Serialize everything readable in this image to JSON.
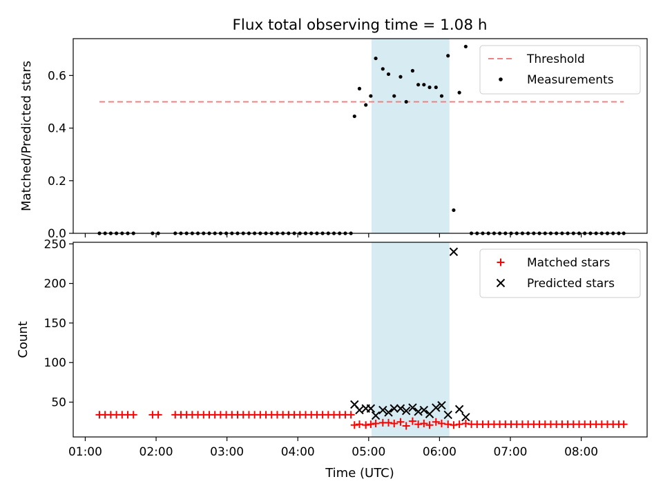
{
  "chart_data": {
    "title": "Flux total observing time = 1.08 h",
    "xlabel": "Time (UTC)",
    "x_ticks": [
      "01:00",
      "02:00",
      "03:00",
      "04:00",
      "05:00",
      "06:00",
      "07:00",
      "08:00"
    ],
    "x_range_hours": [
      0.83,
      8.93
    ],
    "highlight_span_hours": [
      5.04,
      6.14
    ],
    "highlight_color": "#add8e6",
    "panels": [
      {
        "type": "scatter",
        "ylabel": "Matched/Predicted stars",
        "ylim": [
          0,
          0.74
        ],
        "yticks": [
          "0.0",
          "0.2",
          "0.4",
          "0.6"
        ],
        "ytick_values": [
          0,
          0.2,
          0.4,
          0.6
        ],
        "legend": {
          "placement": "top-right",
          "entries": [
            "Threshold",
            "Measurements"
          ]
        },
        "threshold": {
          "name": "Threshold",
          "value": 0.5,
          "x_range_hours": [
            1.2,
            8.6
          ],
          "color": "#f08080"
        },
        "series": [
          {
            "name": "Measurements",
            "color": "#000000",
            "points": [
              [
                1.2,
                0
              ],
              [
                1.28,
                0
              ],
              [
                1.36,
                0
              ],
              [
                1.44,
                0
              ],
              [
                1.52,
                0
              ],
              [
                1.6,
                0
              ],
              [
                1.68,
                0
              ],
              [
                1.95,
                0
              ],
              [
                2.03,
                0
              ],
              [
                2.27,
                0
              ],
              [
                2.35,
                0
              ],
              [
                2.43,
                0
              ],
              [
                2.51,
                0
              ],
              [
                2.59,
                0
              ],
              [
                2.67,
                0
              ],
              [
                2.75,
                0
              ],
              [
                2.83,
                0
              ],
              [
                2.91,
                0
              ],
              [
                2.99,
                0
              ],
              [
                3.07,
                0
              ],
              [
                3.15,
                0
              ],
              [
                3.23,
                0
              ],
              [
                3.31,
                0
              ],
              [
                3.39,
                0
              ],
              [
                3.47,
                0
              ],
              [
                3.55,
                0
              ],
              [
                3.63,
                0
              ],
              [
                3.71,
                0
              ],
              [
                3.79,
                0
              ],
              [
                3.87,
                0
              ],
              [
                3.95,
                0
              ],
              [
                4.03,
                0
              ],
              [
                4.11,
                0
              ],
              [
                4.19,
                0
              ],
              [
                4.27,
                0
              ],
              [
                4.35,
                0
              ],
              [
                4.43,
                0
              ],
              [
                4.51,
                0
              ],
              [
                4.59,
                0
              ],
              [
                4.67,
                0
              ],
              [
                4.75,
                0
              ],
              [
                4.8,
                0.445
              ],
              [
                4.87,
                0.55
              ],
              [
                4.96,
                0.488
              ],
              [
                5.03,
                0.522
              ],
              [
                5.1,
                0.665
              ],
              [
                5.2,
                0.625
              ],
              [
                5.28,
                0.605
              ],
              [
                5.36,
                0.522
              ],
              [
                5.45,
                0.595
              ],
              [
                5.53,
                0.5
              ],
              [
                5.62,
                0.618
              ],
              [
                5.7,
                0.565
              ],
              [
                5.78,
                0.565
              ],
              [
                5.86,
                0.555
              ],
              [
                5.95,
                0.555
              ],
              [
                6.03,
                0.522
              ],
              [
                6.12,
                0.675
              ],
              [
                6.2,
                0.088
              ],
              [
                6.28,
                0.535
              ],
              [
                6.37,
                0.71
              ],
              [
                6.45,
                0
              ],
              [
                6.53,
                0
              ],
              [
                6.61,
                0
              ],
              [
                6.69,
                0
              ],
              [
                6.77,
                0
              ],
              [
                6.85,
                0
              ],
              [
                6.93,
                0
              ],
              [
                7.01,
                0
              ],
              [
                7.09,
                0
              ],
              [
                7.17,
                0
              ],
              [
                7.25,
                0
              ],
              [
                7.33,
                0
              ],
              [
                7.41,
                0
              ],
              [
                7.49,
                0
              ],
              [
                7.57,
                0
              ],
              [
                7.65,
                0
              ],
              [
                7.73,
                0
              ],
              [
                7.81,
                0
              ],
              [
                7.89,
                0
              ],
              [
                7.97,
                0
              ],
              [
                8.05,
                0
              ],
              [
                8.13,
                0
              ],
              [
                8.21,
                0
              ],
              [
                8.29,
                0
              ],
              [
                8.37,
                0
              ],
              [
                8.45,
                0
              ],
              [
                8.53,
                0
              ],
              [
                8.6,
                0
              ]
            ]
          }
        ]
      },
      {
        "type": "scatter",
        "ylabel": "Count",
        "ylim": [
          6,
          252
        ],
        "yticks": [
          "50",
          "100",
          "150",
          "200",
          "250"
        ],
        "ytick_values": [
          50,
          100,
          150,
          200,
          250
        ],
        "legend": {
          "placement": "top-right",
          "entries": [
            "Matched stars",
            "Predicted stars"
          ]
        },
        "series": [
          {
            "name": "Matched stars",
            "marker": "plus",
            "color": "#ff0000",
            "points": [
              [
                1.2,
                34
              ],
              [
                1.28,
                34
              ],
              [
                1.36,
                34
              ],
              [
                1.44,
                34
              ],
              [
                1.52,
                34
              ],
              [
                1.6,
                34
              ],
              [
                1.68,
                34
              ],
              [
                1.95,
                34
              ],
              [
                2.03,
                34
              ],
              [
                2.27,
                34
              ],
              [
                2.35,
                34
              ],
              [
                2.43,
                34
              ],
              [
                2.51,
                34
              ],
              [
                2.59,
                34
              ],
              [
                2.67,
                34
              ],
              [
                2.75,
                34
              ],
              [
                2.83,
                34
              ],
              [
                2.91,
                34
              ],
              [
                2.99,
                34
              ],
              [
                3.07,
                34
              ],
              [
                3.15,
                34
              ],
              [
                3.23,
                34
              ],
              [
                3.31,
                34
              ],
              [
                3.39,
                34
              ],
              [
                3.47,
                34
              ],
              [
                3.55,
                34
              ],
              [
                3.63,
                34
              ],
              [
                3.71,
                34
              ],
              [
                3.79,
                34
              ],
              [
                3.87,
                34
              ],
              [
                3.95,
                34
              ],
              [
                4.03,
                34
              ],
              [
                4.11,
                34
              ],
              [
                4.19,
                34
              ],
              [
                4.27,
                34
              ],
              [
                4.35,
                34
              ],
              [
                4.43,
                34
              ],
              [
                4.51,
                34
              ],
              [
                4.59,
                34
              ],
              [
                4.67,
                34
              ],
              [
                4.75,
                34
              ],
              [
                4.8,
                21
              ],
              [
                4.87,
                22
              ],
              [
                4.96,
                21
              ],
              [
                5.03,
                22
              ],
              [
                5.1,
                23
              ],
              [
                5.2,
                24
              ],
              [
                5.28,
                24
              ],
              [
                5.36,
                23
              ],
              [
                5.45,
                25
              ],
              [
                5.53,
                20
              ],
              [
                5.62,
                26
              ],
              [
                5.7,
                22
              ],
              [
                5.78,
                23
              ],
              [
                5.86,
                21
              ],
              [
                5.95,
                25
              ],
              [
                6.03,
                23
              ],
              [
                6.12,
                22
              ],
              [
                6.2,
                21
              ],
              [
                6.28,
                22
              ],
              [
                6.37,
                23
              ],
              [
                6.45,
                22
              ],
              [
                6.53,
                22
              ],
              [
                6.61,
                22
              ],
              [
                6.69,
                22
              ],
              [
                6.77,
                22
              ],
              [
                6.85,
                22
              ],
              [
                6.93,
                22
              ],
              [
                7.01,
                22
              ],
              [
                7.09,
                22
              ],
              [
                7.17,
                22
              ],
              [
                7.25,
                22
              ],
              [
                7.33,
                22
              ],
              [
                7.41,
                22
              ],
              [
                7.49,
                22
              ],
              [
                7.57,
                22
              ],
              [
                7.65,
                22
              ],
              [
                7.73,
                22
              ],
              [
                7.81,
                22
              ],
              [
                7.89,
                22
              ],
              [
                7.97,
                22
              ],
              [
                8.05,
                22
              ],
              [
                8.13,
                22
              ],
              [
                8.21,
                22
              ],
              [
                8.29,
                22
              ],
              [
                8.37,
                22
              ],
              [
                8.45,
                22
              ],
              [
                8.53,
                22
              ],
              [
                8.6,
                22
              ]
            ]
          },
          {
            "name": "Predicted stars",
            "marker": "x",
            "color": "#000000",
            "points": [
              [
                4.8,
                47
              ],
              [
                4.87,
                40
              ],
              [
                4.96,
                42
              ],
              [
                5.03,
                42
              ],
              [
                5.1,
                33
              ],
              [
                5.2,
                40
              ],
              [
                5.28,
                37
              ],
              [
                5.36,
                42
              ],
              [
                5.45,
                42
              ],
              [
                5.53,
                39
              ],
              [
                5.62,
                43
              ],
              [
                5.7,
                38
              ],
              [
                5.78,
                40
              ],
              [
                5.86,
                35
              ],
              [
                5.95,
                43
              ],
              [
                6.03,
                46
              ],
              [
                6.12,
                34
              ],
              [
                6.2,
                240
              ],
              [
                6.28,
                41
              ],
              [
                6.37,
                31
              ]
            ]
          }
        ]
      }
    ]
  }
}
